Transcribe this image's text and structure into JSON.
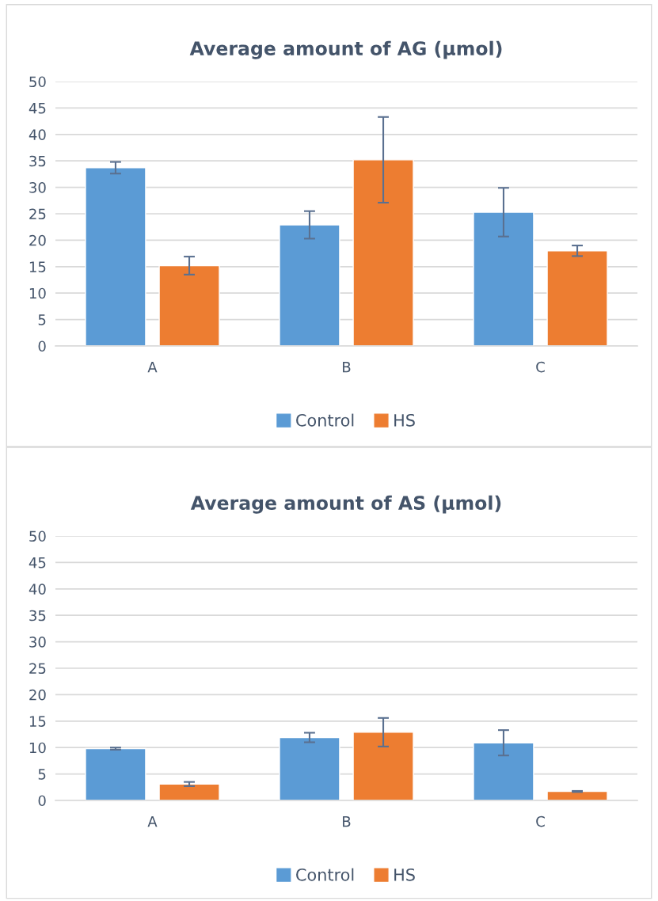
{
  "chart_data": [
    {
      "type": "bar",
      "title": "Average amount of AG (µmol)",
      "categories": [
        "A",
        "B",
        "C"
      ],
      "series": [
        {
          "name": "Control",
          "color": "#5b9bd5",
          "values": [
            33.7,
            22.9,
            25.3
          ],
          "errors": [
            1.1,
            2.6,
            4.6
          ]
        },
        {
          "name": "HS",
          "color": "#ed7d31",
          "values": [
            15.2,
            35.2,
            18.0
          ],
          "errors": [
            1.7,
            8.1,
            1.0
          ]
        }
      ],
      "ylim": [
        0,
        50
      ],
      "yticks": [
        0,
        5,
        10,
        15,
        20,
        25,
        30,
        35,
        40,
        45,
        50
      ],
      "grid": "y",
      "legend": "bottom"
    },
    {
      "type": "bar",
      "title": "Average amount of AS (µmol)",
      "categories": [
        "A",
        "B",
        "C"
      ],
      "series": [
        {
          "name": "Control",
          "color": "#5b9bd5",
          "values": [
            9.8,
            11.9,
            10.9
          ],
          "errors": [
            0.2,
            0.9,
            2.4
          ]
        },
        {
          "name": "HS",
          "color": "#ed7d31",
          "values": [
            3.1,
            12.9,
            1.7
          ],
          "errors": [
            0.4,
            2.7,
            0.1
          ]
        }
      ],
      "ylim": [
        0,
        50
      ],
      "yticks": [
        0,
        5,
        10,
        15,
        20,
        25,
        30,
        35,
        40,
        45,
        50
      ],
      "grid": "y",
      "legend": "bottom"
    }
  ]
}
